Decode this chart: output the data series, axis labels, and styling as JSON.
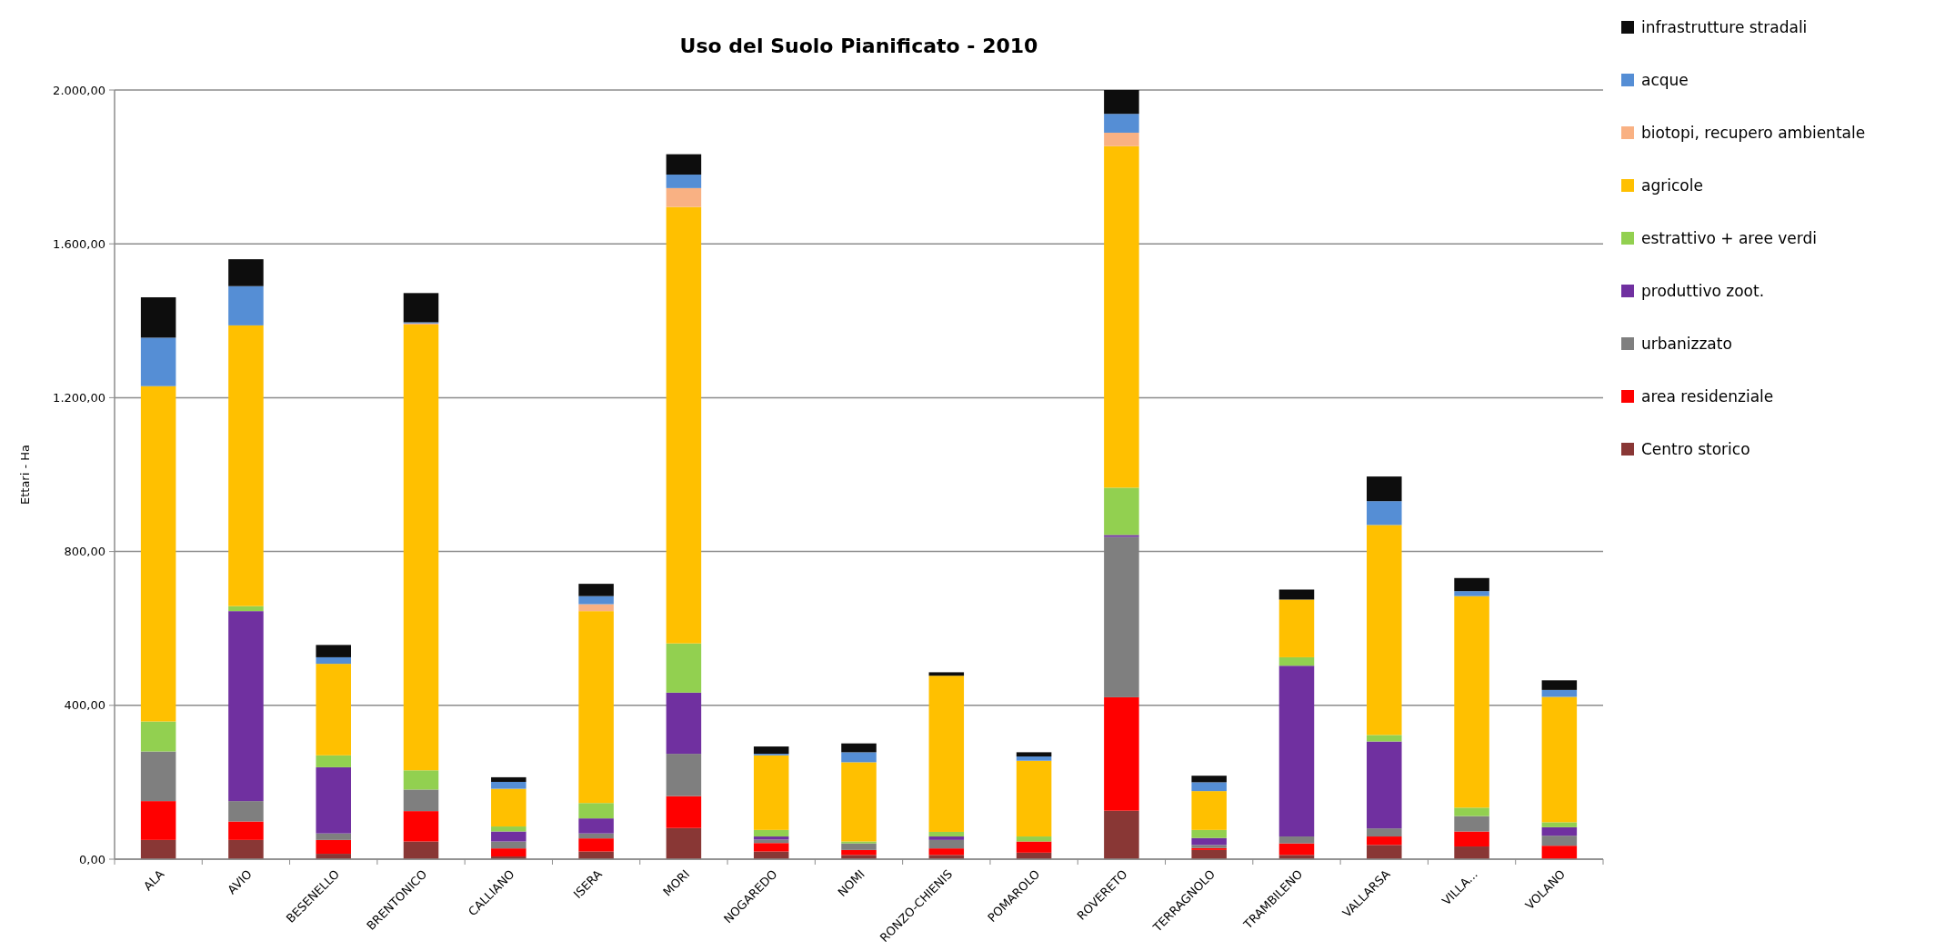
{
  "chart_data": {
    "type": "bar",
    "title": "Uso del Suolo Pianificato - 2010",
    "ylabel": "Ettari - Ha",
    "stacked": true,
    "grid": "y",
    "legend": "right",
    "categories": [
      "ALA",
      "AVIO",
      "BESENELLO",
      "BRENTONICO",
      "CALLIANO",
      "ISERA",
      "MORI",
      "NOGAREDO",
      "NOMI",
      "RONZO-CHIENIS",
      "POMAROLO",
      "ROVERETO",
      "TERRAGNOLO",
      "TRAMBILENO",
      "VALLARSA",
      "VILLA...",
      "VOLANO"
    ],
    "ylim": [
      0,
      2000
    ],
    "yticks": [
      {
        "value": 0,
        "label": "0,00"
      },
      {
        "value": 400,
        "label": "400,00"
      },
      {
        "value": 800,
        "label": "800,00"
      },
      {
        "value": 1200,
        "label": "1.200,00"
      },
      {
        "value": 1600,
        "label": "1.600,00"
      },
      {
        "value": 2000,
        "label": "2.000,00"
      }
    ],
    "series": [
      {
        "name": "Centro storico",
        "color": "#893735",
        "values": [
          50,
          50,
          14,
          46,
          7,
          20,
          81,
          20,
          11,
          11,
          17,
          126,
          24,
          11,
          37,
          33,
          null
        ]
      },
      {
        "name": "area residenziale",
        "color": "#ff0000",
        "values": [
          101,
          48,
          36,
          79,
          21,
          34,
          83,
          22,
          13,
          17,
          29,
          295,
          5,
          30,
          22,
          39,
          35
        ]
      },
      {
        "name": "urbanizzato",
        "color": "#7f7f7f",
        "values": [
          129,
          53,
          17,
          56,
          18,
          13,
          110,
          9,
          17,
          22,
          0,
          417,
          8,
          18,
          21,
          40,
          26
        ]
      },
      {
        "name": "produttivo zoot.",
        "color": "#7030a0",
        "values": [
          0,
          494,
          172,
          0,
          26,
          39,
          159,
          8,
          0,
          9,
          0,
          5,
          18,
          444,
          226,
          0,
          22
        ]
      },
      {
        "name": "estrattivo + aree verdi",
        "color": "#92d050",
        "values": [
          78,
          13,
          31,
          50,
          13,
          40,
          128,
          17,
          5,
          12,
          13,
          123,
          21,
          22,
          17,
          22,
          13
        ]
      },
      {
        "name": "agricole",
        "color": "#ffc000",
        "values": [
          872,
          730,
          238,
          1159,
          98,
          499,
          1135,
          194,
          206,
          406,
          197,
          888,
          101,
          150,
          546,
          550,
          326
        ]
      },
      {
        "name": "biotopi, recupero ambientale",
        "color": "#f9b183",
        "values": [
          0,
          0,
          0,
          3,
          0,
          18,
          49,
          0,
          0,
          0,
          0,
          35,
          0,
          0,
          0,
          0,
          0
        ]
      },
      {
        "name": "acque",
        "color": "#558ed5",
        "values": [
          126,
          102,
          17,
          3,
          18,
          21,
          35,
          4,
          26,
          0,
          11,
          49,
          23,
          0,
          62,
          13,
          18
        ]
      },
      {
        "name": "infrastrutture stradali",
        "color": "#0d0d0d",
        "values": [
          105,
          70,
          32,
          76,
          12,
          32,
          53,
          19,
          23,
          9,
          11,
          62,
          17,
          26,
          64,
          34,
          25
        ]
      }
    ]
  }
}
